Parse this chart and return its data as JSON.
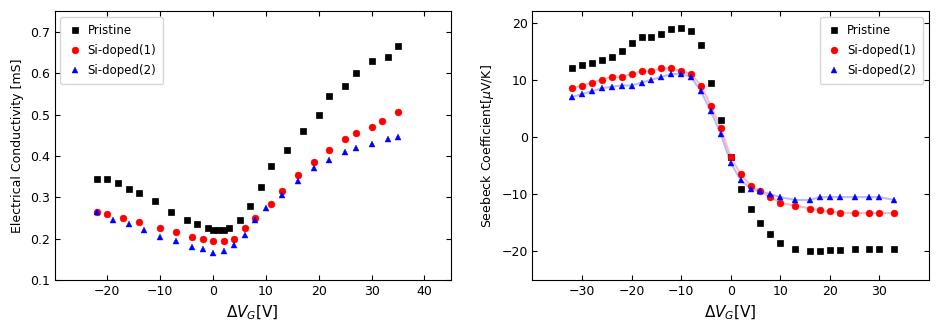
{
  "left": {
    "ylabel": "Electrical Conductivity [mS]",
    "xlim": [
      -30,
      45
    ],
    "ylim": [
      0.1,
      0.75
    ],
    "xticks": [
      -20,
      -10,
      0,
      10,
      20,
      30,
      40
    ],
    "yticks": [
      0.1,
      0.2,
      0.3,
      0.4,
      0.5,
      0.6,
      0.7
    ],
    "pristine_x": [
      -22,
      -20,
      -18,
      -16,
      -14,
      -11,
      -8,
      -5,
      -3,
      -1,
      0,
      1,
      2,
      3,
      5,
      7,
      9,
      11,
      14,
      17,
      20,
      22,
      25,
      27,
      30,
      33,
      35
    ],
    "pristine_y": [
      0.345,
      0.345,
      0.335,
      0.32,
      0.31,
      0.29,
      0.265,
      0.245,
      0.235,
      0.225,
      0.22,
      0.22,
      0.22,
      0.225,
      0.245,
      0.28,
      0.325,
      0.375,
      0.415,
      0.46,
      0.5,
      0.545,
      0.57,
      0.6,
      0.63,
      0.64,
      0.665
    ],
    "sidoped1_x": [
      -22,
      -20,
      -17,
      -14,
      -10,
      -7,
      -4,
      -2,
      0,
      2,
      4,
      6,
      8,
      11,
      13,
      16,
      19,
      22,
      25,
      27,
      30,
      32,
      35
    ],
    "sidoped1_y": [
      0.265,
      0.26,
      0.25,
      0.24,
      0.225,
      0.215,
      0.205,
      0.2,
      0.195,
      0.195,
      0.2,
      0.225,
      0.25,
      0.285,
      0.315,
      0.355,
      0.385,
      0.415,
      0.44,
      0.455,
      0.47,
      0.485,
      0.505
    ],
    "sidoped2_x": [
      -22,
      -19,
      -16,
      -13,
      -10,
      -7,
      -4,
      -2,
      0,
      2,
      4,
      6,
      8,
      10,
      13,
      16,
      19,
      22,
      25,
      27,
      30,
      33,
      35
    ],
    "sidoped2_y": [
      0.265,
      0.245,
      0.235,
      0.22,
      0.205,
      0.195,
      0.18,
      0.175,
      0.165,
      0.17,
      0.185,
      0.21,
      0.245,
      0.275,
      0.305,
      0.34,
      0.37,
      0.39,
      0.41,
      0.42,
      0.43,
      0.44,
      0.445
    ]
  },
  "right": {
    "ylabel": "Seebeck Coefficient[μV/K]",
    "xlim": [
      -40,
      40
    ],
    "ylim": [
      -25,
      22
    ],
    "xticks": [
      -30,
      -20,
      -10,
      0,
      10,
      20,
      30
    ],
    "yticks": [
      -20,
      -10,
      0,
      10,
      20
    ],
    "pristine_x": [
      -32,
      -30,
      -28,
      -26,
      -24,
      -22,
      -20,
      -18,
      -16,
      -14,
      -12,
      -10,
      -8,
      -6,
      -4,
      -2,
      0,
      2,
      4,
      6,
      8,
      10,
      13,
      16,
      18,
      20,
      22,
      25,
      28,
      30,
      33
    ],
    "pristine_y": [
      12.0,
      12.5,
      13.0,
      13.5,
      14.0,
      15.0,
      16.5,
      17.5,
      17.5,
      18.0,
      18.8,
      19.0,
      18.5,
      16.0,
      9.5,
      3.0,
      -3.5,
      -9.0,
      -12.5,
      -15.0,
      -17.0,
      -18.5,
      -19.5,
      -20.0,
      -20.0,
      -19.8,
      -19.8,
      -19.5,
      -19.5,
      -19.5,
      -19.5
    ],
    "sidoped1_x": [
      -32,
      -30,
      -28,
      -26,
      -24,
      -22,
      -20,
      -18,
      -16,
      -14,
      -12,
      -10,
      -8,
      -6,
      -4,
      -2,
      0,
      2,
      4,
      6,
      8,
      10,
      13,
      16,
      18,
      20,
      22,
      25,
      28,
      30,
      33
    ],
    "sidoped1_y": [
      8.5,
      9.0,
      9.5,
      10.0,
      10.5,
      10.5,
      11.0,
      11.5,
      11.5,
      12.0,
      12.0,
      11.5,
      11.0,
      9.0,
      5.5,
      1.5,
      -3.5,
      -6.5,
      -8.5,
      -9.5,
      -10.5,
      -11.5,
      -12.0,
      -12.5,
      -12.8,
      -13.0,
      -13.2,
      -13.3,
      -13.3,
      -13.3,
      -13.3
    ],
    "sidoped2_x": [
      -32,
      -30,
      -28,
      -26,
      -24,
      -22,
      -20,
      -18,
      -16,
      -14,
      -12,
      -10,
      -8,
      -6,
      -4,
      -2,
      0,
      2,
      4,
      6,
      8,
      10,
      13,
      16,
      18,
      20,
      22,
      25,
      28,
      30,
      33
    ],
    "sidoped2_y": [
      7.0,
      7.5,
      8.0,
      8.5,
      8.8,
      9.0,
      9.0,
      9.5,
      10.0,
      10.5,
      11.0,
      11.0,
      10.5,
      8.0,
      4.5,
      0.5,
      -4.5,
      -7.5,
      -9.0,
      -9.5,
      -10.0,
      -10.5,
      -11.0,
      -11.0,
      -10.5,
      -10.5,
      -10.5,
      -10.5,
      -10.5,
      -10.5,
      -11.0
    ],
    "line1_color": "#ffbbbb",
    "line2_color": "#bbbbff"
  },
  "pristine_color": "#000000",
  "sidoped1_color": "#ff0000",
  "sidoped2_color": "#0000ff",
  "bg_color": "#ffffff"
}
